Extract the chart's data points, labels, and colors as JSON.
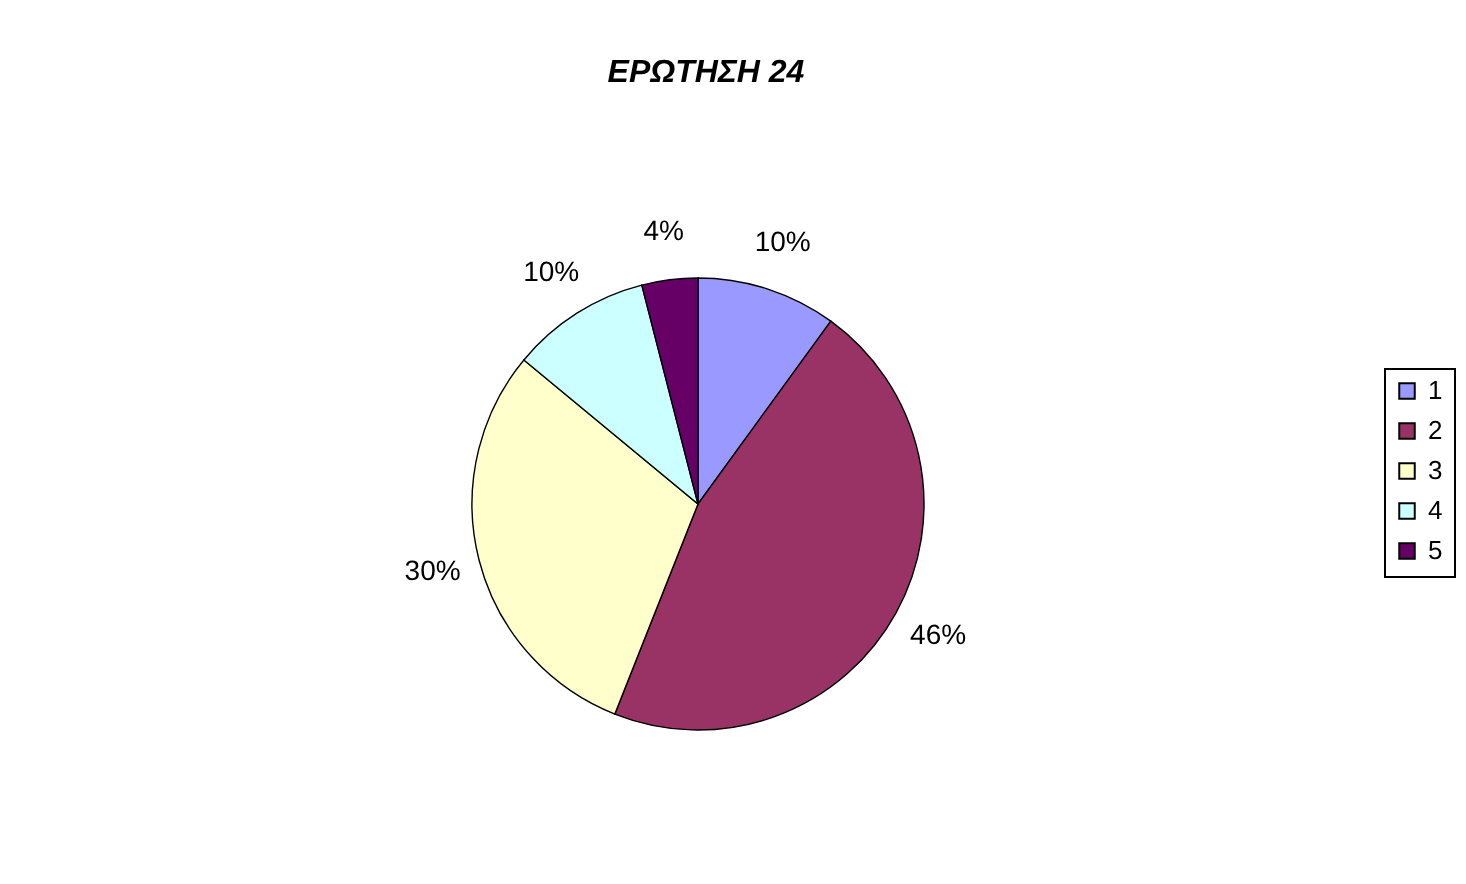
{
  "chart_data": {
    "type": "pie",
    "title": "ΕΡΩΤΗΣΗ 24",
    "categories": [
      "1",
      "2",
      "3",
      "4",
      "5"
    ],
    "values": [
      10,
      46,
      30,
      10,
      4
    ],
    "value_labels": [
      "10%",
      "46%",
      "30%",
      "10%",
      "4%"
    ],
    "colors": [
      "#9999ff",
      "#993366",
      "#ffffcc",
      "#ccffff",
      "#660066"
    ],
    "legend": "right"
  }
}
